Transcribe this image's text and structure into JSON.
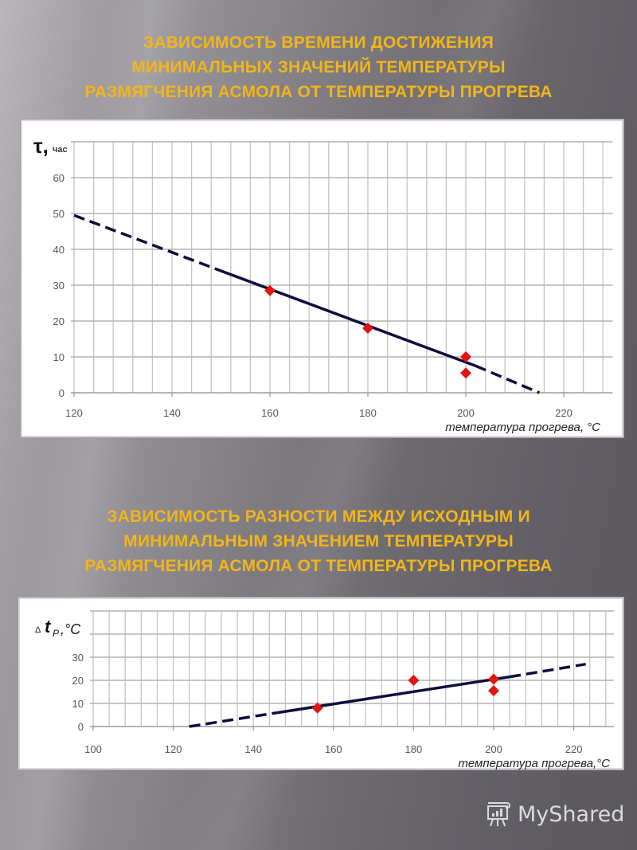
{
  "slide": {
    "title1_lines": [
      "ЗАВИСИМОСТЬ ВРЕМЕНИ ДОСТИЖЕНИЯ",
      "МИНИМАЛЬНЫХ ЗНАЧЕНИЙ  ТЕМПЕРАТУРЫ",
      "РАЗМЯГЧЕНИЯ АСМОЛА ОТ ТЕМПЕРАТУРЫ  ПРОГРЕВА"
    ],
    "title2_lines": [
      "ЗАВИСИМОСТЬ РАЗНОСТИ МЕЖДУ ИСХОДНЫМ И",
      "МИНИМАЛЬНЫМ ЗНАЧЕНИЕМ ТЕМПЕРАТУРЫ",
      "РАЗМЯГЧЕНИЯ АСМОЛА ОТ ТЕМПЕРАТУРЫ ПРОГРЕВА"
    ],
    "title_color": "#f2b619",
    "logo_text": "MyShared",
    "logo_icon": "presentation-board-icon"
  },
  "chart_data": [
    {
      "type": "scatter",
      "title": "Зависимость времени достижения минимальных значений температуры размягчения асмола от температуры прогрева",
      "xlabel": "температура прогрева, °С",
      "ylabel_symbol": "τ,",
      "ylabel_unit": "час",
      "xlim": [
        120,
        230
      ],
      "ylim": [
        0,
        70
      ],
      "xticks": [
        120,
        140,
        160,
        180,
        200,
        220
      ],
      "yticks": [
        0,
        10,
        20,
        30,
        40,
        50,
        60
      ],
      "x_minor_grid_step": 4,
      "grid": true,
      "marker_color": "#e31414",
      "line_color": "#0d0d3d",
      "series": [
        {
          "name": "experimental points",
          "marker": "diamond",
          "x": [
            160,
            180,
            200,
            200
          ],
          "y": [
            28.5,
            18,
            10,
            5.5
          ]
        },
        {
          "name": "trend line",
          "style": "solid within data, dashed extrapolation",
          "x": [
            120,
            150,
            202,
            215
          ],
          "y": [
            49.5,
            34,
            7.5,
            0
          ],
          "dashed_ranges": [
            [
              120,
              150
            ],
            [
              202,
              215
            ]
          ],
          "solid_range": [
            150,
            202
          ]
        }
      ]
    },
    {
      "type": "scatter",
      "title": "Зависимость разности между исходным и минимальным значением температуры размягчения асмола от температуры прогрева",
      "xlabel": "температура прогрева,°С",
      "ylabel_prefix": "Δ",
      "ylabel_symbol": "t",
      "ylabel_subscript": "P",
      "ylabel_unit": ",°С",
      "xlim": [
        100,
        230
      ],
      "ylim": [
        0,
        50
      ],
      "xticks": [
        100,
        120,
        140,
        160,
        180,
        200,
        220
      ],
      "yticks": [
        0,
        10,
        20,
        30
      ],
      "x_minor_grid_step": 4,
      "grid": true,
      "marker_color": "#e31414",
      "line_color": "#0d0d3d",
      "series": [
        {
          "name": "experimental points",
          "marker": "diamond",
          "x": [
            156,
            180,
            200,
            200
          ],
          "y": [
            8,
            20,
            20.5,
            15.5
          ]
        },
        {
          "name": "trend line",
          "style": "solid within data, dashed extrapolation",
          "x": [
            124,
            146,
            204,
            223
          ],
          "y": [
            0,
            6,
            21.5,
            27
          ],
          "dashed_ranges": [
            [
              124,
              146
            ],
            [
              204,
              223
            ]
          ],
          "solid_range": [
            146,
            204
          ]
        }
      ]
    }
  ]
}
